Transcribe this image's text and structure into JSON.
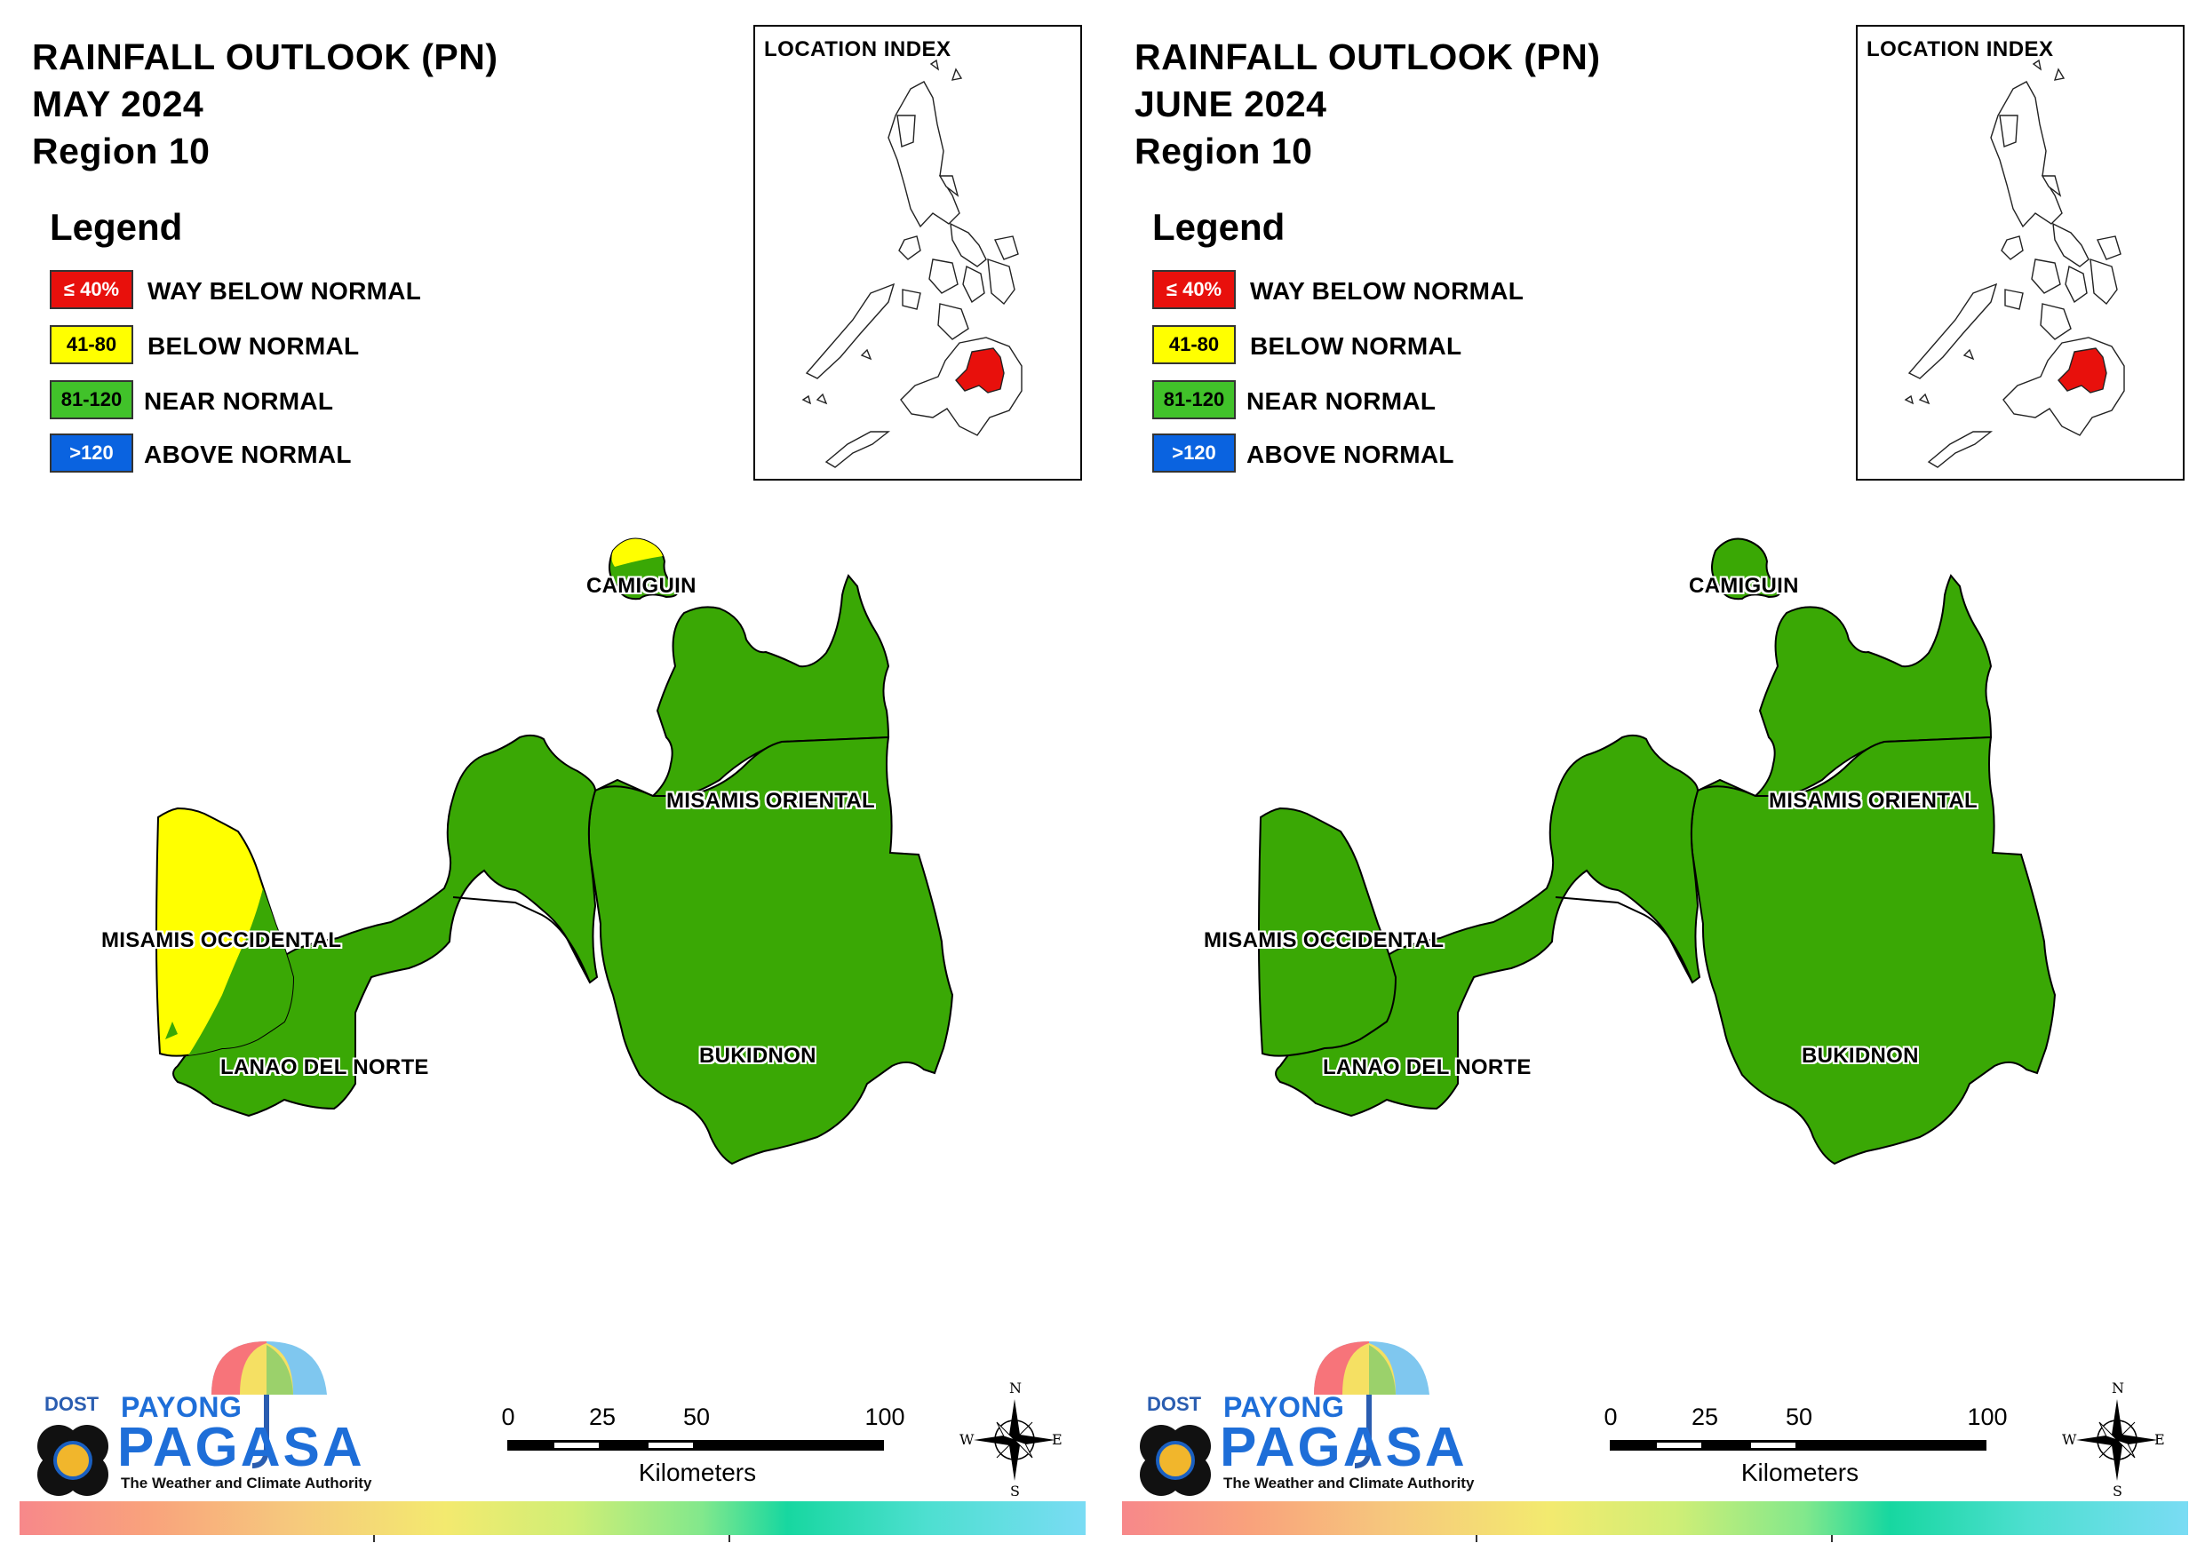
{
  "panels": [
    {
      "id": "may",
      "title": {
        "line1": "RAINFALL OUTLOOK (PN)",
        "line2": "MAY 2024",
        "line3": "Region 10"
      },
      "misamis_occidental_class": "mixed"
    },
    {
      "id": "june",
      "title": {
        "line1": "RAINFALL OUTLOOK (PN)",
        "line2": "JUNE 2024",
        "line3": "Region 10"
      },
      "misamis_occidental_class": "near_normal"
    }
  ],
  "legend": {
    "title": "Legend",
    "items": [
      {
        "swatch": "≤ 40%",
        "label": "WAY BELOW NORMAL",
        "color": "#e8100c"
      },
      {
        "swatch": "41-80",
        "label": "BELOW NORMAL",
        "color": "#ffff00"
      },
      {
        "swatch": "81-120",
        "label": "NEAR NORMAL",
        "color": "#41c22a"
      },
      {
        "swatch": ">120",
        "label": "ABOVE NORMAL",
        "color": "#0a63e0"
      }
    ]
  },
  "inset": {
    "title": "LOCATION INDEX",
    "highlight_color": "#e8100c"
  },
  "provinces": {
    "camiguin": "CAMIGUIN",
    "misamis_oriental": "MISAMIS ORIENTAL",
    "misamis_occidental": "MISAMIS OCCIDENTAL",
    "lanao_del_norte": "LANAO DEL NORTE",
    "bukidnon": "BUKIDNON"
  },
  "map_colors": {
    "near_normal": "#3aa805",
    "below_normal": "#ffff00",
    "border": "#000000"
  },
  "scale": {
    "ticks": [
      "0",
      "25",
      "50",
      "100"
    ],
    "units": "Kilometers"
  },
  "compass": {
    "n": "N",
    "s": "S",
    "e": "E",
    "w": "W"
  },
  "logo": {
    "dost": "DOST",
    "payong": "PAYONG",
    "pagasa": "PAGASA",
    "tagline": "The Weather and Climate Authority"
  }
}
